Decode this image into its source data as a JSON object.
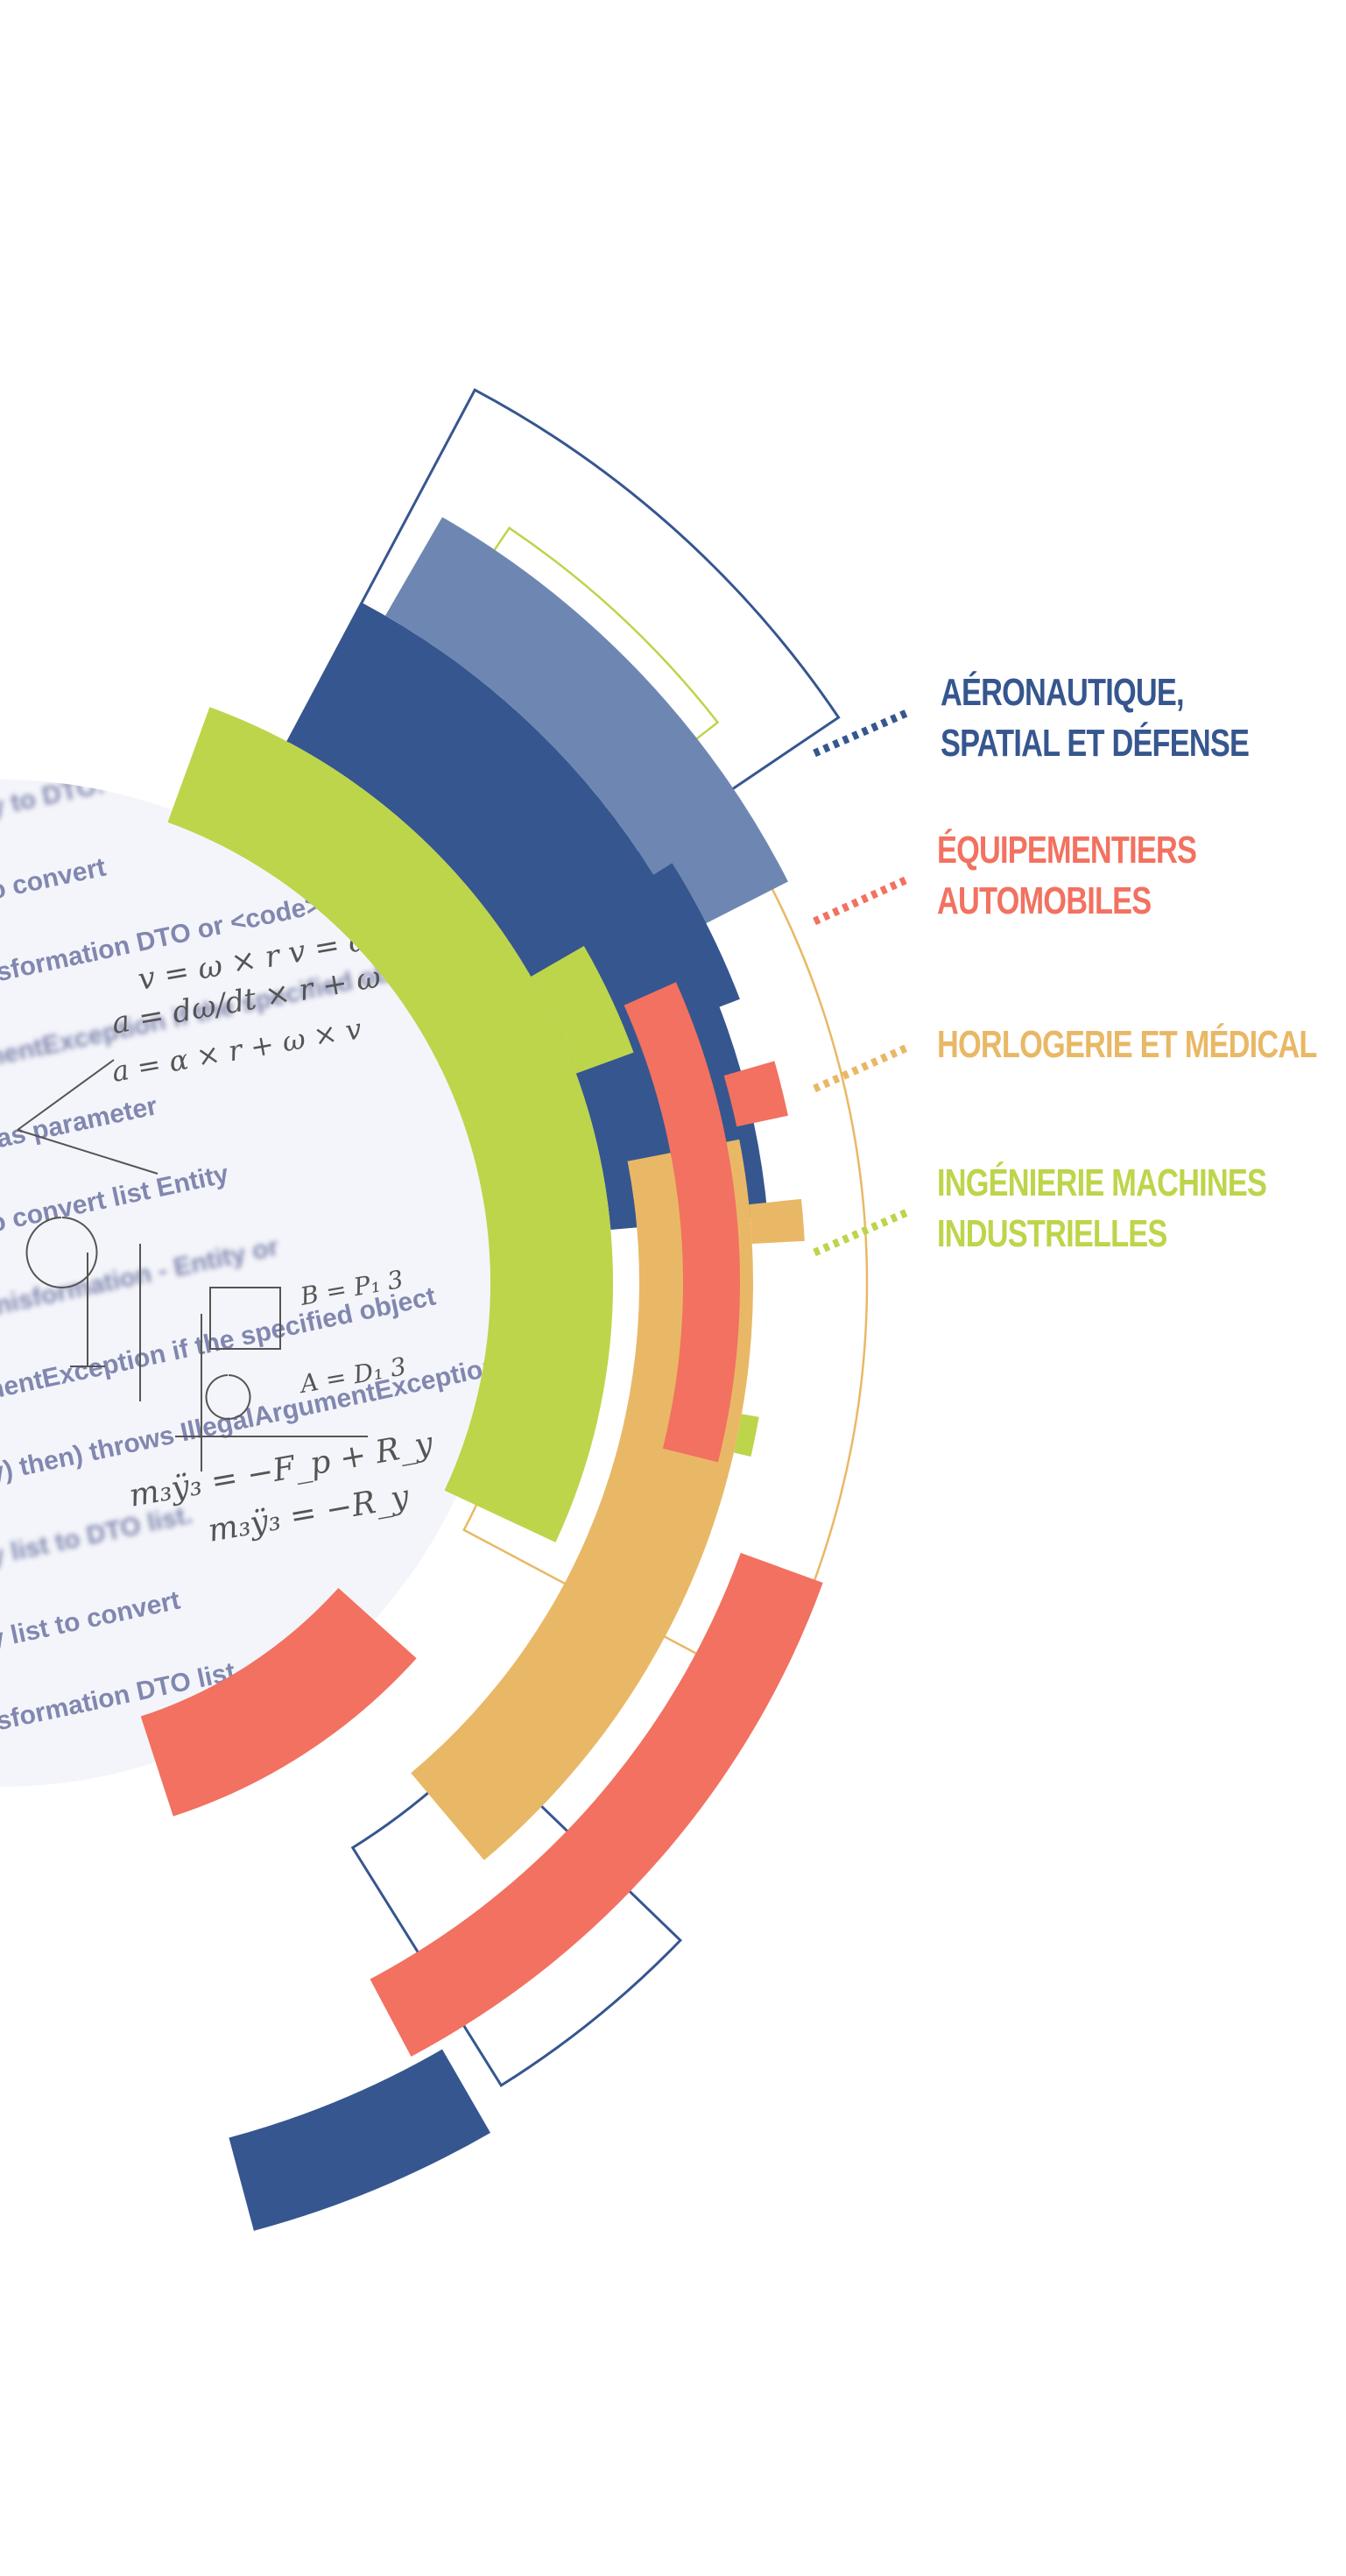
{
  "palette": {
    "navy": "#36568f",
    "light_navy": "#6e87b2",
    "coral": "#f27160",
    "gold": "#e9b866",
    "lime": "#bcd54a"
  },
  "categories": [
    {
      "lines": [
        "AÉRONAUTIQUE,",
        "SPATIAL ET DÉFENSE"
      ],
      "color": "#36568f"
    },
    {
      "lines": [
        "ÉQUIPEMENTIERS",
        "AUTOMOBILES"
      ],
      "color": "#f27160"
    },
    {
      "lines": [
        "HORLOGERIE ET MÉDICAL"
      ],
      "color": "#e9b866"
    },
    {
      "lines": [
        "INGÉNIERIE MACHINES",
        "INDUSTRIELLES"
      ],
      "color": "#bcd54a"
    }
  ],
  "background_text": {
    "code_lines": [
      "ty to DTO.",
      "to convert",
      "nsformation DTO or <code>null</code>",
      "mentException if the specified object",
      "has parameter",
      "to convert list Entity",
      "anisformation - Entity or",
      "mentException if the specified object",
      "ty) then) throws IllegalArgumentException",
      "ty list to DTO list.",
      "ty list to convert",
      "nsformation DTO list"
    ],
    "equations": [
      "v = ω × r   v = ωr",
      "a = dω/dt × r + ω × v = a_t + a_r",
      "a = α × r + ω × v",
      "m₃ÿ₃ = −F_p + R_y",
      "m₃ÿ₃ = −R_y",
      "A = D₁ 3",
      "B = P₁ 3"
    ]
  }
}
